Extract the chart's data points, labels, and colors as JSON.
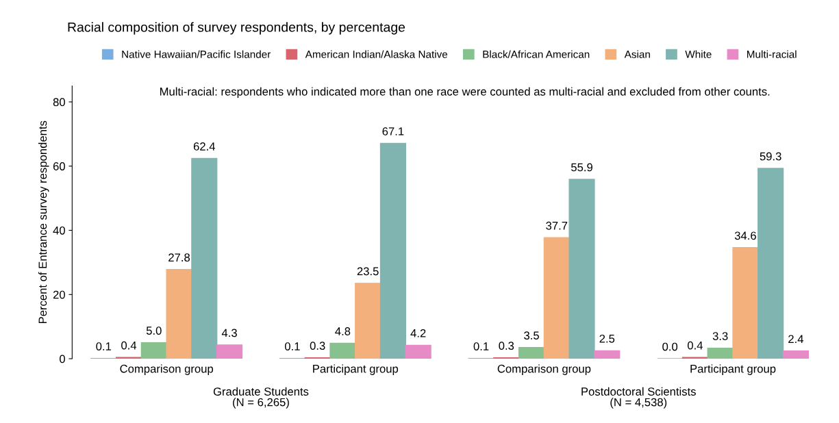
{
  "chart_data": {
    "type": "bar",
    "title": "Racial composition of survey respondents, by percentage",
    "ylabel": "Percent of Entrance survey respondents",
    "categories": [
      "Comparison group",
      "Participant group",
      "Comparison group",
      "Participant group"
    ],
    "series": [
      {
        "name": "Native Hawaiian/Pacific Islander",
        "color": "#7aaee0",
        "values": [
          0.1,
          0.1,
          0.1,
          0.0
        ],
        "value_labels": [
          "0.1",
          "0.1",
          "0.1",
          "0.0"
        ]
      },
      {
        "name": "American Indian/Alaska Native",
        "color": "#d9646e",
        "values": [
          0.4,
          0.3,
          0.3,
          0.4
        ],
        "value_labels": [
          "0.4",
          "0.3",
          "0.3",
          "0.4"
        ]
      },
      {
        "name": "Black/African American",
        "color": "#86c18e",
        "values": [
          5.0,
          4.8,
          3.5,
          3.3
        ],
        "value_labels": [
          "5.0",
          "4.8",
          "3.5",
          "3.3"
        ]
      },
      {
        "name": "Asian",
        "color": "#f4b07c",
        "values": [
          27.8,
          23.5,
          37.7,
          34.6
        ],
        "value_labels": [
          "27.8",
          "23.5",
          "37.7",
          "34.6"
        ]
      },
      {
        "name": "White",
        "color": "#80b4b1",
        "values": [
          62.4,
          67.1,
          55.9,
          59.3
        ],
        "value_labels": [
          "62.4",
          "67.1",
          "55.9",
          "59.3"
        ]
      },
      {
        "name": "Multi-racial",
        "color": "#e68bc6",
        "values": [
          4.3,
          4.2,
          2.5,
          2.4
        ],
        "value_labels": [
          "4.3",
          "4.2",
          "2.5",
          "2.4"
        ]
      }
    ],
    "ylim": [
      0,
      85
    ],
    "yticks": [
      0,
      20,
      40,
      60,
      80
    ],
    "legend": "top",
    "grid": false,
    "annotations": [
      "Multi-racial: respondents who indicated more than one race were counted as multi-racial and excluded from other counts.",
      "Graduate Students\n(N = 6,265)",
      "Postdoctoral Scientists\n(N = 4,538)"
    ]
  }
}
